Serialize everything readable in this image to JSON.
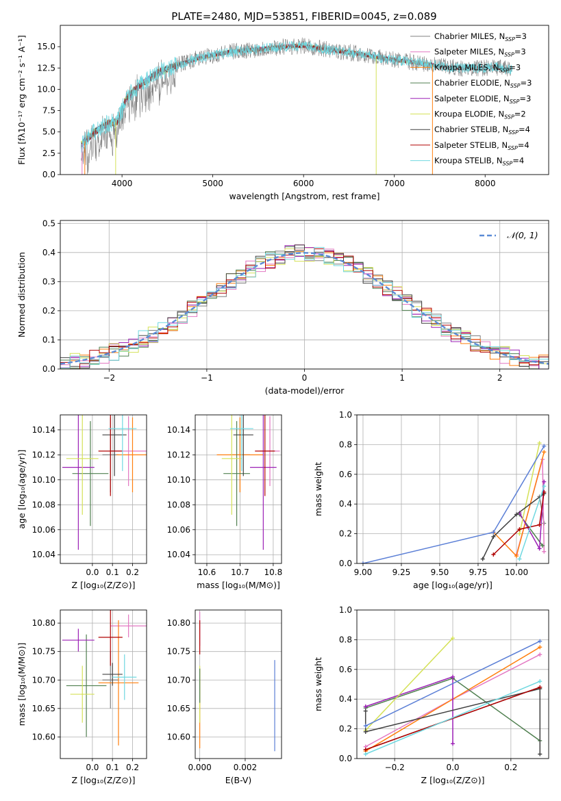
{
  "figure": {
    "title": "PLATE=2480, MJD=53851, FIBERID=0045, z=0.089"
  },
  "models": [
    {
      "name": "Chabrier MILES",
      "nssp": "3",
      "color": "#7f7f7f"
    },
    {
      "name": "Salpeter MILES",
      "nssp": "3",
      "color": "#e377c2"
    },
    {
      "name": "Kroupa MILES",
      "nssp": "3",
      "color": "#ff7f0e"
    },
    {
      "name": "Chabrier ELODIE",
      "nssp": "3",
      "color": "#4f7f4f"
    },
    {
      "name": "Salpeter ELODIE",
      "nssp": "3",
      "color": "#9b1fb5"
    },
    {
      "name": "Kroupa ELODIE",
      "nssp": "2",
      "color": "#d4e157"
    },
    {
      "name": "Chabrier STELIB",
      "nssp": "4",
      "color": "#404040"
    },
    {
      "name": "Salpeter STELIB",
      "nssp": "4",
      "color": "#b00000"
    },
    {
      "name": "Kroupa STELIB",
      "nssp": "4",
      "color": "#6fd8e0"
    }
  ],
  "chart_data": [
    {
      "id": "spectrum",
      "type": "line",
      "xlabel": "wavelength [Angstrom, rest frame]",
      "ylabel": "Flux [fλ10⁻¹⁷ erg cm⁻² s⁻¹ A⁻¹]",
      "xlim": [
        3320,
        8700
      ],
      "ylim": [
        0,
        17.5
      ],
      "xticks": [
        4000,
        5000,
        6000,
        7000,
        8000
      ],
      "yticks": [
        0.0,
        2.5,
        5.0,
        7.5,
        10.0,
        12.5,
        15.0
      ],
      "envelope": {
        "x": [
          3550,
          3700,
          3850,
          3950,
          4050,
          4200,
          4400,
          4600,
          4800,
          5000,
          5200,
          5500,
          5800,
          6000,
          6300,
          6600,
          6900,
          7200,
          7500,
          7800,
          8100,
          8300
        ],
        "y": [
          3.5,
          5.0,
          6.0,
          6.2,
          9.0,
          10.5,
          12.0,
          12.8,
          13.5,
          14.0,
          14.4,
          14.7,
          15.0,
          15.1,
          14.6,
          14.2,
          13.6,
          13.2,
          12.7,
          12.4,
          12.6,
          12.3
        ]
      }
    },
    {
      "id": "residuals",
      "type": "histogram",
      "xlabel": "(data-model)/error",
      "ylabel": "Normed distribution",
      "xlim": [
        -2.5,
        2.5
      ],
      "ylim": [
        0,
        0.51
      ],
      "xticks": [
        -2,
        -1,
        0,
        1,
        2
      ],
      "yticks": [
        0.0,
        0.1,
        0.2,
        0.3,
        0.4,
        0.5
      ],
      "reference_label": "𝒩(0, 1)",
      "reference_mean": 0,
      "reference_sigma": 1,
      "bin_width": 0.1
    },
    {
      "id": "Z-age",
      "type": "errorbar",
      "xlabel": "Z [log₁₀(Z/Z⊙)]",
      "ylabel": "age  [log₁₀(age/yr)]",
      "xlim": [
        -0.16,
        0.27
      ],
      "ylim": [
        10.033,
        10.152
      ],
      "xticks": [
        0.0,
        0.1,
        0.2
      ],
      "yticks": [
        10.04,
        10.06,
        10.08,
        10.1,
        10.12,
        10.14
      ],
      "points": [
        {
          "model": "Chabrier MILES",
          "x": 0.09,
          "xerr": 0.04,
          "y": 10.12,
          "yerr": 0.03
        },
        {
          "model": "Salpeter MILES",
          "x": 0.18,
          "xerr": 0.09,
          "y": 10.123,
          "yerr": 0.028
        },
        {
          "model": "Kroupa MILES",
          "x": 0.2,
          "xerr": 0.08,
          "y": 10.12,
          "yerr": 0.03
        },
        {
          "model": "Chabrier ELODIE",
          "x": -0.01,
          "xerr": 0.09,
          "y": 10.105,
          "yerr": 0.042
        },
        {
          "model": "Salpeter ELODIE",
          "x": -0.07,
          "xerr": 0.08,
          "y": 10.11,
          "yerr": 0.066
        },
        {
          "model": "Kroupa ELODIE",
          "x": -0.05,
          "xerr": 0.08,
          "y": 10.117,
          "yerr": 0.045
        },
        {
          "model": "Chabrier STELIB",
          "x": 0.11,
          "xerr": 0.06,
          "y": 10.136,
          "yerr": 0.033
        },
        {
          "model": "Salpeter STELIB",
          "x": 0.09,
          "xerr": 0.06,
          "y": 10.123,
          "yerr": 0.036
        },
        {
          "model": "Kroupa STELIB",
          "x": 0.15,
          "xerr": 0.07,
          "y": 10.141,
          "yerr": 0.034
        }
      ]
    },
    {
      "id": "mass-age",
      "type": "errorbar",
      "xlabel": "mass [log₁₀(M/M⊙)]",
      "ylabel": "",
      "xlim": [
        10.565,
        10.825
      ],
      "ylim": [
        10.033,
        10.152
      ],
      "xticks": [
        10.6,
        10.7,
        10.8
      ],
      "yticks": [
        10.04,
        10.06,
        10.08,
        10.1,
        10.12,
        10.14
      ],
      "points": [
        {
          "model": "Chabrier MILES",
          "x": 10.7,
          "xerr": 0.03,
          "y": 10.12,
          "yerr": 0.03
        },
        {
          "model": "Salpeter MILES",
          "x": 10.79,
          "xerr": 0.03,
          "y": 10.123,
          "yerr": 0.028
        },
        {
          "model": "Kroupa MILES",
          "x": 10.7,
          "xerr": 0.07,
          "y": 10.12,
          "yerr": 0.03
        },
        {
          "model": "Chabrier ELODIE",
          "x": 10.69,
          "xerr": 0.04,
          "y": 10.105,
          "yerr": 0.042
        },
        {
          "model": "Salpeter ELODIE",
          "x": 10.77,
          "xerr": 0.04,
          "y": 10.11,
          "yerr": 0.066
        },
        {
          "model": "Kroupa ELODIE",
          "x": 10.675,
          "xerr": 0.03,
          "y": 10.117,
          "yerr": 0.045
        },
        {
          "model": "Chabrier STELIB",
          "x": 10.71,
          "xerr": 0.03,
          "y": 10.136,
          "yerr": 0.033
        },
        {
          "model": "Salpeter STELIB",
          "x": 10.775,
          "xerr": 0.03,
          "y": 10.123,
          "yerr": 0.036
        },
        {
          "model": "Kroupa STELIB",
          "x": 10.705,
          "xerr": 0.035,
          "y": 10.141,
          "yerr": 0.034
        }
      ]
    },
    {
      "id": "age-weight",
      "type": "line",
      "xlabel": "age  [log₁₀(age/yr)]",
      "ylabel": "mass weight",
      "xlim": [
        8.96,
        10.21
      ],
      "ylim": [
        0,
        1
      ],
      "xticks": [
        9.0,
        9.25,
        9.5,
        9.75,
        10.0
      ],
      "yticks": [
        0.0,
        0.2,
        0.4,
        0.6,
        0.8,
        1.0
      ],
      "series": [
        {
          "model": "Chabrier MILES",
          "x": [
            10.15,
            10.18
          ],
          "y": [
            0.45,
            0.27
          ]
        },
        {
          "model": "Salpeter MILES",
          "x": [
            10.0,
            10.17,
            10.18
          ],
          "y": [
            0.06,
            0.7,
            0.08
          ]
        },
        {
          "model": "Kroupa MILES",
          "x": [
            9.85,
            10.0,
            10.18
          ],
          "y": [
            0.21,
            0.05,
            0.75
          ]
        },
        {
          "model": "Chabrier ELODIE",
          "x": [
            10.02,
            10.17
          ],
          "y": [
            0.33,
            0.12
          ]
        },
        {
          "model": "Salpeter ELODIE",
          "x": [
            10.02,
            10.15,
            10.18
          ],
          "y": [
            0.34,
            0.1,
            0.55
          ]
        },
        {
          "model": "Kroupa ELODIE",
          "x": [
            10.02,
            10.15
          ],
          "y": [
            0.2,
            0.81
          ]
        },
        {
          "model": "Chabrier STELIB",
          "x": [
            9.78,
            9.85,
            10.0,
            10.18
          ],
          "y": [
            0.03,
            0.18,
            0.33,
            0.47
          ]
        },
        {
          "model": "Salpeter STELIB",
          "x": [
            9.85,
            10.02,
            10.15,
            10.18
          ],
          "y": [
            0.06,
            0.23,
            0.26,
            0.48
          ]
        },
        {
          "model": "Kroupa STELIB",
          "x": [
            10.02,
            10.18
          ],
          "y": [
            0.03,
            0.52
          ]
        },
        {
          "model": "Blue",
          "x": [
            9.0,
            9.85,
            10.18
          ],
          "y": [
            0.0,
            0.21,
            0.79
          ]
        }
      ]
    },
    {
      "id": "Z-mass",
      "type": "errorbar",
      "xlabel": "Z [log₁₀(Z/Z⊙)]",
      "ylabel": "mass [log₁₀(M/M⊙)]",
      "xlim": [
        -0.16,
        0.27
      ],
      "ylim": [
        10.562,
        10.823
      ],
      "xticks": [
        0.0,
        0.1,
        0.2
      ],
      "yticks": [
        10.6,
        10.65,
        10.7,
        10.75,
        10.8
      ],
      "points": [
        {
          "model": "Chabrier MILES",
          "x": 0.09,
          "xerr": 0.04,
          "y": 10.7,
          "yerr": 0.05
        },
        {
          "model": "Salpeter MILES",
          "x": 0.18,
          "xerr": 0.09,
          "y": 10.795,
          "yerr": 0.02
        },
        {
          "model": "Kroupa MILES",
          "x": 0.13,
          "xerr": 0.1,
          "y": 10.695,
          "yerr": 0.11
        },
        {
          "model": "Chabrier ELODIE",
          "x": -0.03,
          "xerr": 0.1,
          "y": 10.69,
          "yerr": 0.09
        },
        {
          "model": "Salpeter ELODIE",
          "x": -0.07,
          "xerr": 0.08,
          "y": 10.77,
          "yerr": 0.02
        },
        {
          "model": "Kroupa ELODIE",
          "x": -0.05,
          "xerr": 0.06,
          "y": 10.675,
          "yerr": 0.05
        },
        {
          "model": "Chabrier STELIB",
          "x": 0.1,
          "xerr": 0.05,
          "y": 10.71,
          "yerr": 0.02
        },
        {
          "model": "Salpeter STELIB",
          "x": 0.09,
          "xerr": 0.06,
          "y": 10.775,
          "yerr": 0.05
        },
        {
          "model": "Kroupa STELIB",
          "x": 0.16,
          "xerr": 0.06,
          "y": 10.705,
          "yerr": 0.04
        }
      ]
    },
    {
      "id": "EBV-mass",
      "type": "errorbar",
      "xlabel": "E(B-V)",
      "ylabel": "",
      "xlim": [
        -0.0002,
        0.0036
      ],
      "ylim": [
        10.562,
        10.823
      ],
      "xticks": [
        0.0,
        0.002
      ],
      "yticks": [
        10.6,
        10.65,
        10.7,
        10.75,
        10.8
      ],
      "points": [
        {
          "model": "Salpeter MILES",
          "x": 0.0,
          "xerr": 0,
          "y": 10.79,
          "yerr": 0.03
        },
        {
          "model": "Kroupa MILES",
          "x": 0.0,
          "xerr": 0,
          "y": 10.65,
          "yerr": 0.07
        },
        {
          "model": "Salpeter STELIB",
          "x": 0.0,
          "xerr": 0,
          "y": 10.775,
          "yerr": 0.03
        },
        {
          "model": "Kroupa ELODIE",
          "x": 0.0,
          "xerr": 0,
          "y": 10.675,
          "yerr": 0.05
        },
        {
          "model": "Chabrier ELODIE",
          "x": 0.0,
          "xerr": 0,
          "y": 10.69,
          "yerr": 0.03
        },
        {
          "model": "Blue",
          "x": 0.0033,
          "xerr": 0,
          "y": 10.655,
          "yerr": 0.08
        }
      ]
    },
    {
      "id": "Z-weight",
      "type": "line",
      "xlabel": "Z [log₁₀(Z/Z⊙)]",
      "ylabel": "mass weight",
      "xlim": [
        -0.33,
        0.33
      ],
      "ylim": [
        0,
        1
      ],
      "xticks": [
        -0.2,
        0.0,
        0.2
      ],
      "yticks": [
        0.0,
        0.2,
        0.4,
        0.6,
        0.8,
        1.0
      ],
      "series": [
        {
          "model": "Chabrier MILES",
          "x": [
            -0.3,
            0.3
          ],
          "y": [
            0.06,
            0.48
          ]
        },
        {
          "model": "Salpeter MILES",
          "x": [
            -0.3,
            0.0,
            0.3
          ],
          "y": [
            0.08,
            0.4,
            0.7
          ]
        },
        {
          "model": "Kroupa MILES",
          "x": [
            -0.3,
            0.3
          ],
          "y": [
            0.05,
            0.75
          ]
        },
        {
          "model": "Chabrier ELODIE",
          "x": [
            -0.3,
            0.0,
            0.3
          ],
          "y": [
            0.34,
            0.54,
            0.12
          ]
        },
        {
          "model": "Salpeter ELODIE",
          "x": [
            -0.3,
            0.0,
            0.0
          ],
          "y": [
            0.35,
            0.55,
            0.1
          ]
        },
        {
          "model": "Kroupa ELODIE",
          "x": [
            -0.3,
            0.0
          ],
          "y": [
            0.19,
            0.81
          ]
        },
        {
          "model": "Chabrier STELIB",
          "x": [
            -0.3,
            -0.3,
            0.3,
            0.3
          ],
          "y": [
            0.32,
            0.18,
            0.47,
            0.03
          ]
        },
        {
          "model": "Salpeter STELIB",
          "x": [
            -0.3,
            0.3
          ],
          "y": [
            0.06,
            0.48
          ]
        },
        {
          "model": "Kroupa STELIB",
          "x": [
            -0.3,
            0.3
          ],
          "y": [
            0.03,
            0.52
          ]
        },
        {
          "model": "Blue",
          "x": [
            -0.3,
            0.3
          ],
          "y": [
            0.22,
            0.79
          ]
        }
      ]
    }
  ]
}
